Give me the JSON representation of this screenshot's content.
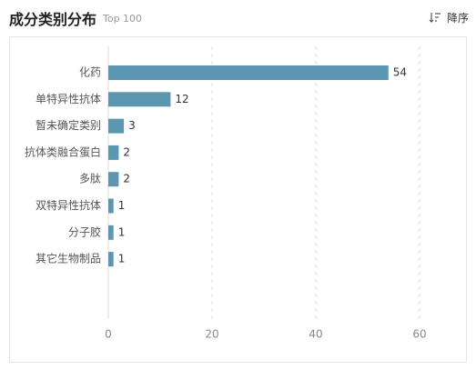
{
  "header": {
    "title": "成分类别分布",
    "subtitle": "Top 100",
    "sort_label": "降序",
    "sort_icon": "sort-descending-icon"
  },
  "chart_data": {
    "type": "bar",
    "orientation": "horizontal",
    "categories": [
      "化药",
      "单特异性抗体",
      "暂未确定类别",
      "抗体类融合蛋白",
      "多肽",
      "双特异性抗体",
      "分子胶",
      "其它生物制品"
    ],
    "values": [
      54,
      12,
      3,
      2,
      2,
      1,
      1,
      1
    ],
    "xlim": [
      0,
      60
    ],
    "xticks": [
      0,
      20,
      40,
      60
    ],
    "grid": true,
    "bar_color": "#5b97b1"
  }
}
